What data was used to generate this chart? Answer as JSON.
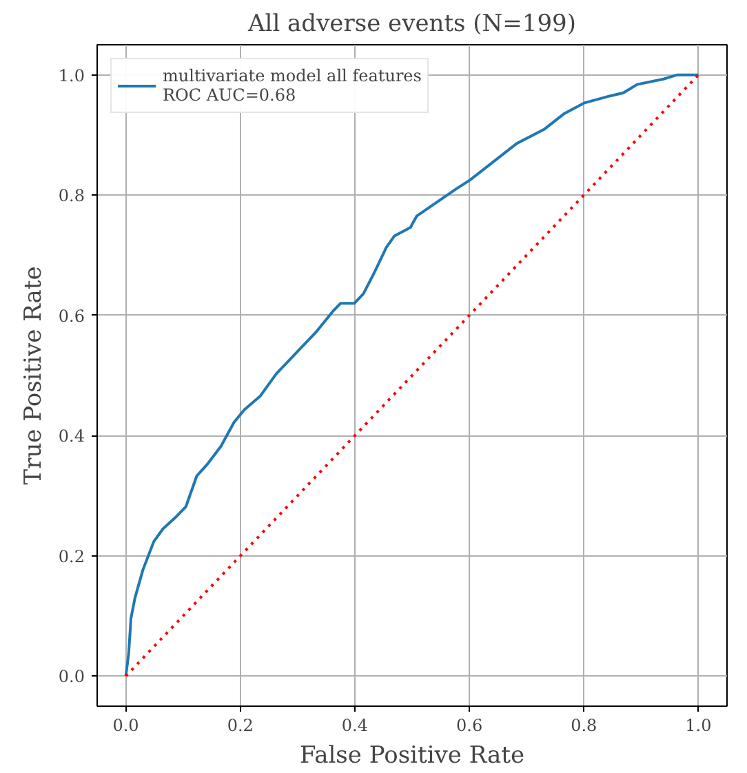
{
  "chart_data": {
    "type": "line",
    "title": "All adverse events (N=199)",
    "xlabel": "False Positive Rate",
    "ylabel": "True Positive Rate",
    "xlim": [
      -0.05,
      1.05
    ],
    "ylim": [
      -0.05,
      1.05
    ],
    "xticks": [
      {
        "value": 0,
        "label": "0.0"
      },
      0.2,
      0.4,
      0.6,
      0.8,
      {
        "value": 1,
        "label": "1.0"
      }
    ],
    "yticks": [
      {
        "value": 0,
        "label": "0.0"
      },
      0.2,
      0.4,
      0.6,
      0.8,
      {
        "value": 1,
        "label": "1.0"
      }
    ],
    "grid": true,
    "legend": "top left",
    "series": [
      {
        "name": "multivariate model all features\nROC AUC=0.68",
        "color": "#1f77b4",
        "line_style": "solid",
        "x": [
          0,
          0.005,
          0.009,
          0.016,
          0.03,
          0.049,
          0.065,
          0.089,
          0.105,
          0.124,
          0.142,
          0.166,
          0.189,
          0.207,
          0.235,
          0.263,
          0.298,
          0.333,
          0.361,
          0.375,
          0.399,
          0.415,
          0.434,
          0.455,
          0.469,
          0.497,
          0.508,
          0.543,
          0.578,
          0.601,
          0.648,
          0.683,
          0.73,
          0.765,
          0.8,
          0.846,
          0.869,
          0.893,
          0.939,
          0.963,
          1.0
        ],
        "values": [
          0,
          0.037,
          0.096,
          0.13,
          0.177,
          0.224,
          0.245,
          0.266,
          0.282,
          0.333,
          0.352,
          0.382,
          0.422,
          0.443,
          0.466,
          0.503,
          0.538,
          0.573,
          0.606,
          0.62,
          0.62,
          0.636,
          0.671,
          0.713,
          0.732,
          0.746,
          0.765,
          0.788,
          0.811,
          0.825,
          0.86,
          0.886,
          0.909,
          0.935,
          0.953,
          0.965,
          0.97,
          0.984,
          0.993,
          1.0,
          1.0
        ]
      },
      {
        "color": "#ff0000",
        "line_style": "dotted",
        "x": [
          0,
          1
        ],
        "values": [
          0,
          1
        ]
      }
    ]
  }
}
